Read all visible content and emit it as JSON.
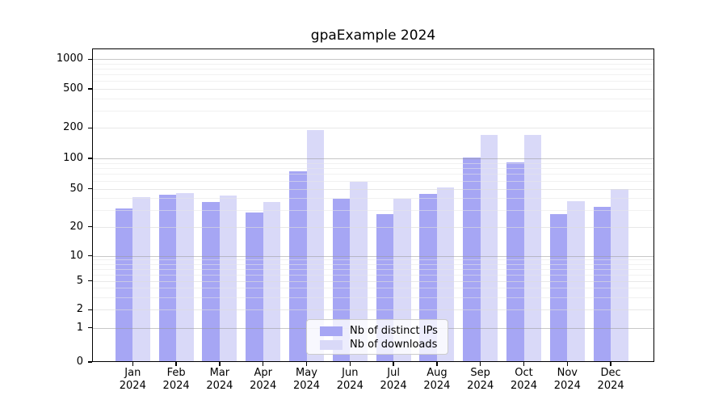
{
  "chart_data": {
    "type": "bar",
    "title": "gpaExample 2024",
    "scale": "symlog",
    "grid": "horizontal, major and minor",
    "legend_position": "lower center",
    "categories": [
      "Jan\n2024",
      "Feb\n2024",
      "Mar\n2024",
      "Apr\n2024",
      "May\n2024",
      "Jun\n2024",
      "Jul\n2024",
      "Aug\n2024",
      "Sep\n2024",
      "Oct\n2024",
      "Nov\n2024",
      "Dec\n2024"
    ],
    "series": [
      {
        "name": "Nb of distinct IPs",
        "color": "#a6a6f4",
        "values": [
          31,
          43,
          36,
          28,
          74,
          39,
          27,
          44,
          102,
          92,
          27,
          32
        ]
      },
      {
        "name": "Nb of downloads",
        "color": "#d9d9f8",
        "values": [
          41,
          45,
          42,
          36,
          192,
          58,
          39,
          51,
          170,
          170,
          37,
          50
        ]
      }
    ],
    "yticks": [
      0,
      1,
      2,
      5,
      10,
      20,
      50,
      100,
      200,
      500,
      1000
    ],
    "ylim": [
      0,
      1400
    ],
    "xlabel": "",
    "ylabel": ""
  }
}
